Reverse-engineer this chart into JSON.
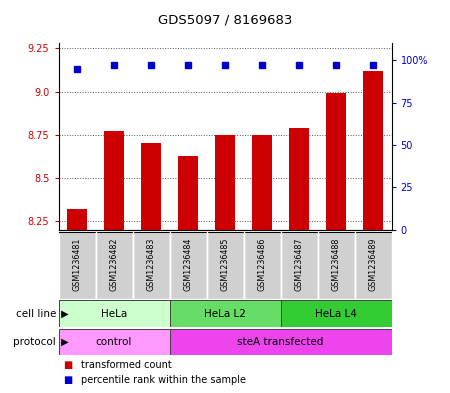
{
  "title": "GDS5097 / 8169683",
  "samples": [
    "GSM1236481",
    "GSM1236482",
    "GSM1236483",
    "GSM1236484",
    "GSM1236485",
    "GSM1236486",
    "GSM1236487",
    "GSM1236488",
    "GSM1236489"
  ],
  "transformed_counts": [
    8.32,
    8.77,
    8.7,
    8.63,
    8.75,
    8.75,
    8.79,
    8.99,
    9.12
  ],
  "percentile_ranks": [
    95,
    97,
    97,
    97,
    97,
    97,
    97,
    97,
    97
  ],
  "ylim_left": [
    8.2,
    9.28
  ],
  "yticks_left": [
    8.25,
    8.5,
    8.75,
    9.0,
    9.25
  ],
  "ylim_right": [
    0,
    110
  ],
  "yticks_right": [
    0,
    25,
    50,
    75,
    100
  ],
  "yticklabels_right": [
    "0",
    "25",
    "50",
    "75",
    "100%"
  ],
  "bar_color": "#cc0000",
  "dot_color": "#0000cc",
  "bar_width": 0.55,
  "cell_line_groups": [
    {
      "label": "HeLa",
      "start": 0,
      "end": 3,
      "color": "#ccffcc"
    },
    {
      "label": "HeLa L2",
      "start": 3,
      "end": 6,
      "color": "#66dd66"
    },
    {
      "label": "HeLa L4",
      "start": 6,
      "end": 9,
      "color": "#33cc33"
    }
  ],
  "protocol_groups": [
    {
      "label": "control",
      "start": 0,
      "end": 3,
      "color": "#ff99ff"
    },
    {
      "label": "steA transfected",
      "start": 3,
      "end": 9,
      "color": "#ee44ee"
    }
  ],
  "legend_items": [
    {
      "label": "transformed count",
      "color": "#cc0000"
    },
    {
      "label": "percentile rank within the sample",
      "color": "#0000cc"
    }
  ],
  "cell_line_label": "cell line",
  "protocol_label": "protocol",
  "sample_box_color": "#d0d0d0",
  "grid_color": "#555555",
  "background_color": "#ffffff"
}
